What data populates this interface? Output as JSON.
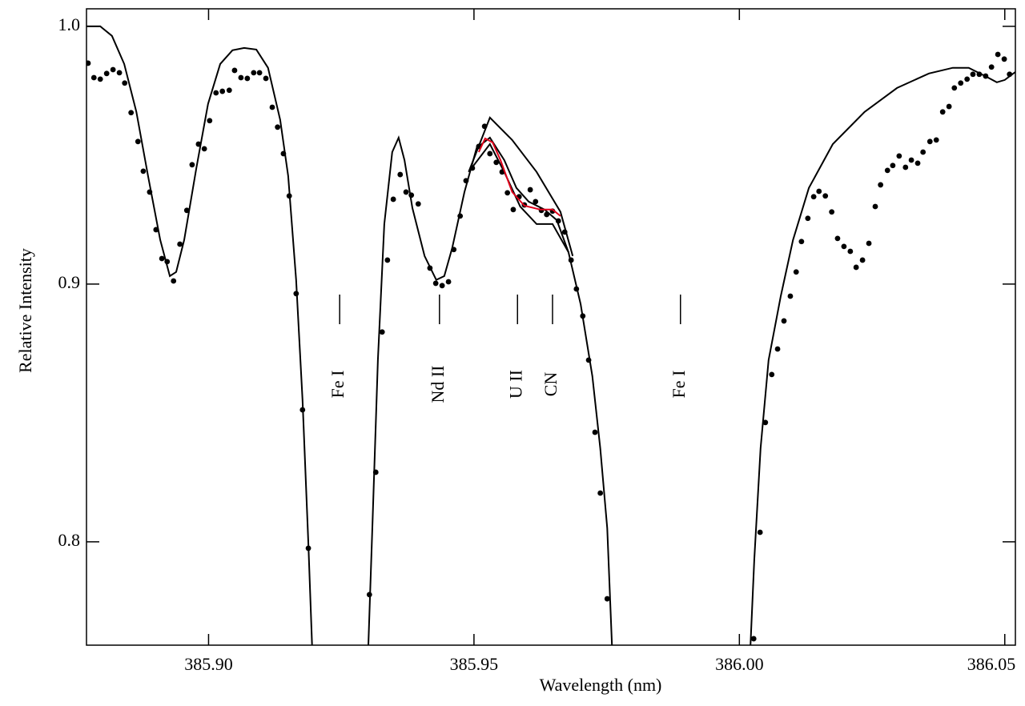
{
  "chart_data": {
    "type": "line",
    "x_label": "Wavelength (nm)",
    "y_label": "Relative Intensity",
    "xlim": [
      385.877,
      386.052
    ],
    "ylim": [
      0.7599,
      1.0068
    ],
    "xticks": [
      {
        "value": 385.9,
        "label": "385.90"
      },
      385.95,
      {
        "value": 386,
        "label": "386.00"
      },
      386.05
    ],
    "yticks": [
      0.8,
      0.9,
      {
        "value": 1,
        "label": "1.0"
      }
    ],
    "series": [
      {
        "type": "scatter",
        "color": "#000000",
        "x": [
          385.8773,
          385.8784,
          385.8796,
          385.8808,
          385.882,
          385.8832,
          385.8842,
          385.8854,
          385.8867,
          385.8877,
          385.8889,
          385.8901,
          385.8912,
          385.8922,
          385.8934,
          385.8946,
          385.8959,
          385.8969,
          385.8981,
          385.8992,
          385.9002,
          385.9014,
          385.9026,
          385.9039,
          385.9049,
          385.9061,
          385.9073,
          385.9085,
          385.9096,
          385.9108,
          385.912,
          385.913,
          385.9141,
          385.9152,
          385.9165,
          385.9177,
          385.9188,
          385.9303,
          385.9315,
          385.9327,
          385.9337,
          385.9348,
          385.9361,
          385.9372,
          385.9382,
          385.9395,
          385.9417,
          385.9428,
          385.944,
          385.9452,
          385.9462,
          385.9474,
          385.9485,
          385.9497,
          385.9509,
          385.952,
          385.953,
          385.9542,
          385.9553,
          385.9563,
          385.9574,
          385.9585,
          385.9595,
          385.9606,
          385.9616,
          385.9627,
          385.9637,
          385.9648,
          385.9659,
          385.9671,
          385.9683,
          385.9693,
          385.9705,
          385.9716,
          385.9728,
          385.9738,
          385.9751,
          386.0027,
          386.0039,
          386.0049,
          386.0061,
          386.0072,
          386.0084,
          386.0096,
          386.0107,
          386.0117,
          386.0129,
          386.014,
          386.015,
          386.0162,
          386.0174,
          386.0185,
          386.0197,
          386.0209,
          386.022,
          386.0232,
          386.0244,
          386.0256,
          386.0266,
          386.0279,
          386.0289,
          386.0301,
          386.0313,
          386.0324,
          386.0336,
          386.0346,
          386.0359,
          386.0371,
          386.0383,
          386.0395,
          386.0405,
          386.0417,
          386.0429,
          386.044,
          386.0452,
          386.0464,
          386.0475,
          386.0487,
          386.0499,
          386.0509
        ],
        "values": [
          0.9857,
          0.9801,
          0.9795,
          0.9817,
          0.9832,
          0.982,
          0.978,
          0.9665,
          0.9553,
          0.9438,
          0.9357,
          0.9211,
          0.9099,
          0.9087,
          0.9012,
          0.9155,
          0.9286,
          0.9463,
          0.9543,
          0.9525,
          0.9634,
          0.9742,
          0.9748,
          0.9752,
          0.9829,
          0.9801,
          0.9798,
          0.982,
          0.982,
          0.9798,
          0.9686,
          0.9609,
          0.9506,
          0.9342,
          0.8963,
          0.8512,
          0.7975,
          0.7795,
          0.827,
          0.8814,
          0.9093,
          0.9329,
          0.9425,
          0.9357,
          0.9345,
          0.9311,
          0.9062,
          0.9003,
          0.8994,
          0.9009,
          0.9134,
          0.9264,
          0.9401,
          0.945,
          0.9534,
          0.9612,
          0.9506,
          0.9472,
          0.9435,
          0.9354,
          0.9289,
          0.9339,
          0.9307,
          0.9366,
          0.932,
          0.9286,
          0.927,
          0.9283,
          0.9245,
          0.9202,
          0.9093,
          0.8981,
          0.8876,
          0.8705,
          0.8425,
          0.8189,
          0.7779,
          0.7624,
          0.8037,
          0.8463,
          0.8649,
          0.8748,
          0.8857,
          0.8953,
          0.9047,
          0.9165,
          0.9255,
          0.9339,
          0.936,
          0.9342,
          0.928,
          0.9177,
          0.9146,
          0.9127,
          0.9065,
          0.9093,
          0.9158,
          0.9301,
          0.9385,
          0.9441,
          0.946,
          0.9497,
          0.9453,
          0.9481,
          0.9469,
          0.9512,
          0.9553,
          0.9559,
          0.9668,
          0.9689,
          0.9761,
          0.978,
          0.9795,
          0.9814,
          0.9814,
          0.9807,
          0.9842,
          0.9891,
          0.9873,
          0.9814
        ]
      },
      {
        "type": "line",
        "color": "#000000",
        "x": [
          385.877,
          385.8796,
          385.8818,
          385.8841,
          385.8864,
          385.8886,
          385.8909,
          385.8927,
          385.8939,
          385.8954,
          385.8977,
          385.8999,
          385.9022,
          385.9045,
          385.9067,
          385.909,
          385.9112,
          385.9135,
          385.915,
          385.9165,
          385.9177,
          385.9188,
          385.9195,
          null,
          385.9301,
          385.9309,
          385.9319,
          385.9331,
          385.9346,
          385.9358,
          385.9369,
          385.9384,
          385.9407,
          385.9429,
          385.9444,
          385.9459,
          385.9482,
          385.9505,
          385.953,
          385.9557,
          385.958,
          385.9603,
          385.9633,
          385.9656,
          385.9678,
          385.9701,
          385.9723,
          385.9738,
          385.9751,
          385.976,
          null,
          386.0021,
          386.0028,
          386.004,
          386.0055,
          386.0078,
          386.0101,
          386.0131,
          386.0176,
          386.0236,
          386.0297,
          386.0357,
          386.0402,
          386.0432,
          386.0463,
          386.0485,
          386.05,
          386.052
        ],
        "values": [
          1.0,
          1.0,
          0.9963,
          0.9854,
          0.9668,
          0.9419,
          0.9171,
          0.9031,
          0.9047,
          0.9171,
          0.945,
          0.9699,
          0.9854,
          0.9907,
          0.9916,
          0.991,
          0.9839,
          0.9637,
          0.9419,
          0.9016,
          0.855,
          0.7991,
          0.7599,
          null,
          0.7599,
          0.8084,
          0.8705,
          0.9233,
          0.9512,
          0.9568,
          0.9481,
          0.9295,
          0.9109,
          0.9016,
          0.9031,
          0.914,
          0.9357,
          0.9528,
          0.9568,
          0.9481,
          0.9373,
          0.932,
          0.9289,
          0.9248,
          0.9124,
          0.8922,
          0.8643,
          0.8363,
          0.8053,
          0.7599,
          null,
          0.7599,
          0.7929,
          0.8363,
          0.8705,
          0.8953,
          0.9171,
          0.9373,
          0.9543,
          0.9668,
          0.9761,
          0.9817,
          0.9839,
          0.9839,
          0.9807,
          0.9783,
          0.9792,
          0.9823
        ]
      },
      {
        "type": "line",
        "color": "#000000",
        "x": [
          385.949,
          385.953,
          385.9572,
          385.9618,
          385.9663,
          385.9686
        ],
        "values": [
          0.9435,
          0.9646,
          0.9559,
          0.9435,
          0.928,
          0.9109
        ]
      },
      {
        "type": "line",
        "color": "#000000",
        "x": [
          385.949,
          385.953,
          385.9557,
          385.9587,
          385.9618,
          385.9648,
          385.9678
        ],
        "values": [
          0.9435,
          0.9543,
          0.9435,
          0.9301,
          0.9233,
          0.9233,
          0.9124
        ]
      },
      {
        "type": "line",
        "color": "#e0001b",
        "x": [
          385.9509,
          385.9521,
          385.9535,
          385.955,
          385.9572,
          385.9595,
          385.9625,
          385.9648,
          385.9663
        ],
        "values": [
          0.9512,
          0.9565,
          0.955,
          0.9481,
          0.9357,
          0.9304,
          0.9289,
          0.9289,
          0.9264
        ]
      }
    ],
    "annotations": [
      {
        "text": "Fe I",
        "x": 385.9247
      },
      {
        "text": "Nd II",
        "x": 385.9435
      },
      {
        "text": "U II",
        "x": 385.9582
      },
      {
        "text": "CN",
        "x": 385.9648
      },
      {
        "text": "Fe I",
        "x": 385.9889
      }
    ]
  }
}
